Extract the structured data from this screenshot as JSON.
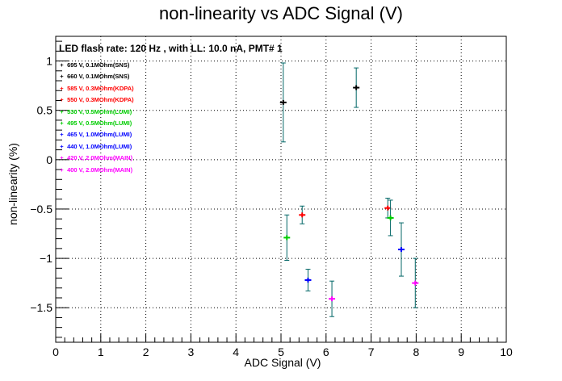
{
  "chart_data": {
    "type": "scatter",
    "title": "non-linearity vs ADC Signal (V)",
    "xlabel": "ADC Signal (V)",
    "ylabel": "non-linearity (%)",
    "xlim": [
      0,
      10
    ],
    "ylim": [
      -1.85,
      1.25
    ],
    "x_ticks": [
      "0",
      "1",
      "2",
      "3",
      "4",
      "5",
      "6",
      "7",
      "8",
      "9",
      "10"
    ],
    "y_ticks": [
      "−1.5",
      "−1",
      "−0.5",
      "0",
      "0.5",
      "1"
    ],
    "y_tick_values": [
      -1.5,
      -1,
      -0.5,
      0,
      0.5,
      1
    ],
    "grid": true,
    "info_text": "LED flash rate: 120 Hz , with LL: 10.0 nA, PMT# 1",
    "series": [
      {
        "name": "695 V, 0.1MOhm(SNS)",
        "color": "#000000",
        "x": [
          6.67
        ],
        "y": [
          0.73
        ],
        "err": [
          0.2
        ]
      },
      {
        "name": "660 V, 0.1MOhm(SNS)",
        "color": "#000000",
        "x": [
          5.05
        ],
        "y": [
          0.58
        ],
        "err": [
          0.4
        ]
      },
      {
        "name": "585 V, 0.3MOhm(KDPA)",
        "color": "#ff0000",
        "x": [
          7.37
        ],
        "y": [
          -0.49
        ],
        "err": [
          0.1
        ]
      },
      {
        "name": "550 V, 0.3MOhm(KDPA)",
        "color": "#ff0000",
        "x": [
          5.47
        ],
        "y": [
          -0.56
        ],
        "err": [
          0.09
        ]
      },
      {
        "name": "530 V, 0.5MOhm(LUMI)",
        "color": "#00cc00",
        "x": [
          7.43
        ],
        "y": [
          -0.59
        ],
        "err": [
          0.18
        ]
      },
      {
        "name": "495 V, 0.5MOhm(LUMI)",
        "color": "#00cc00",
        "x": [
          5.13
        ],
        "y": [
          -0.79
        ],
        "err": [
          0.23
        ]
      },
      {
        "name": "465 V, 1.0MOhm(LUMI)",
        "color": "#0000ff",
        "x": [
          7.67
        ],
        "y": [
          -0.91
        ],
        "err": [
          0.27
        ]
      },
      {
        "name": "440 V, 1.0MOhm(LUMI)",
        "color": "#0000ff",
        "x": [
          5.6
        ],
        "y": [
          -1.22
        ],
        "err": [
          0.11
        ]
      },
      {
        "name": "420 V, 2.0MOhm(MAIN)",
        "color": "#ff00ff",
        "x": [
          7.98
        ],
        "y": [
          -1.25
        ],
        "err": [
          0.25
        ]
      },
      {
        "name": "400 V, 2.0MOhm(MAIN)",
        "color": "#ff00ff",
        "x": [
          6.13
        ],
        "y": [
          -1.41
        ],
        "err": [
          0.18
        ]
      }
    ],
    "errorbar_color": "#006666"
  }
}
